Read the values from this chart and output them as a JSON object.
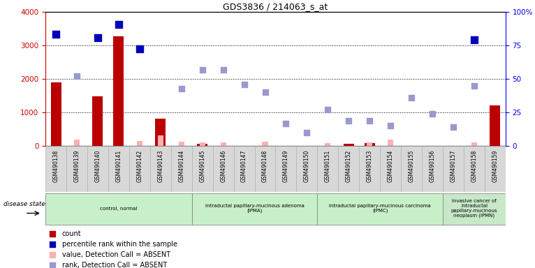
{
  "title": "GDS3836 / 214063_s_at",
  "samples": [
    "GSM490138",
    "GSM490139",
    "GSM490140",
    "GSM490141",
    "GSM490142",
    "GSM490143",
    "GSM490144",
    "GSM490145",
    "GSM490146",
    "GSM490147",
    "GSM490148",
    "GSM490149",
    "GSM490150",
    "GSM490151",
    "GSM490152",
    "GSM490153",
    "GSM490154",
    "GSM490155",
    "GSM490156",
    "GSM490157",
    "GSM490158",
    "GSM490159"
  ],
  "count": [
    1900,
    0,
    1480,
    3280,
    0,
    820,
    0,
    60,
    0,
    0,
    0,
    0,
    0,
    0,
    70,
    80,
    0,
    0,
    0,
    0,
    0,
    1220
  ],
  "percentile_rank": [
    3340,
    null,
    3240,
    3630,
    2900,
    null,
    null,
    null,
    null,
    null,
    null,
    null,
    null,
    null,
    null,
    null,
    null,
    null,
    null,
    null,
    3180,
    null
  ],
  "value_absent": [
    null,
    190,
    null,
    null,
    160,
    310,
    130,
    100,
    100,
    null,
    140,
    null,
    null,
    90,
    null,
    120,
    200,
    null,
    null,
    null,
    100,
    null
  ],
  "rank_absent": [
    null,
    2080,
    null,
    null,
    null,
    null,
    1720,
    2270,
    2280,
    1840,
    1600,
    680,
    400,
    1080,
    760,
    760,
    620,
    1440,
    960,
    560,
    1800,
    null
  ],
  "ylim_left": [
    0,
    4000
  ],
  "ylim_right": [
    0,
    100
  ],
  "yticks_left": [
    0,
    1000,
    2000,
    3000,
    4000
  ],
  "yticks_right": [
    0,
    25,
    50,
    75,
    100
  ],
  "groups": [
    {
      "label": "control, normal",
      "start": 0,
      "end": 6,
      "color": "#c8f0c8"
    },
    {
      "label": "intraductal papillary-mucinous adenoma\n(IPMA)",
      "start": 7,
      "end": 12,
      "color": "#c8f0c8"
    },
    {
      "label": "intraductal papillary-mucinous carcinoma\n(IPMC)",
      "start": 13,
      "end": 18,
      "color": "#c8f0c8"
    },
    {
      "label": "invasive cancer of\nintraductal\npapillary-mucinous\nneoplasm (IPMN)",
      "start": 19,
      "end": 21,
      "color": "#c8f0c8"
    }
  ],
  "bar_color_count": "#bb0000",
  "bar_color_absent_value": "#ffb0b0",
  "scatter_color_percentile": "#0000bb",
  "scatter_color_rank_absent": "#9999cc",
  "legend_items": [
    "count",
    "percentile rank within the sample",
    "value, Detection Call = ABSENT",
    "rank, Detection Call = ABSENT"
  ],
  "legend_colors": [
    "#bb0000",
    "#0000bb",
    "#ffb0b0",
    "#9999cc"
  ],
  "disease_state_label": "disease state"
}
